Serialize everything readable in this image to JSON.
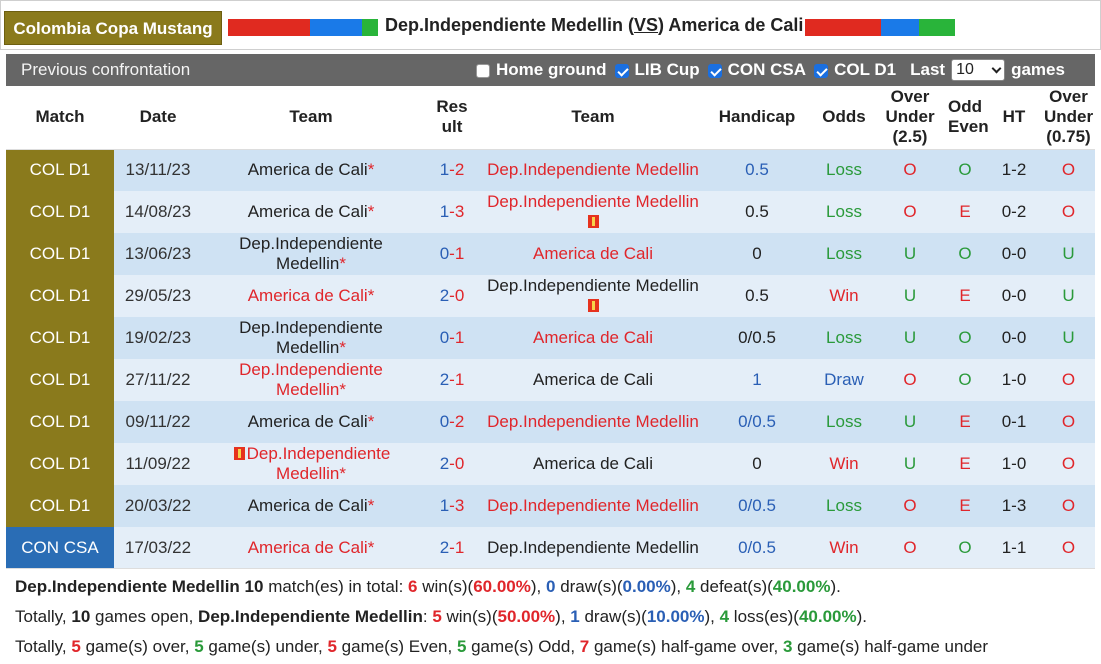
{
  "header": {
    "league": "Colombia Copa Mustang",
    "home_team": "Dep.Independiente Medellin",
    "vs": "VS",
    "away_team": "America de Cali",
    "flag_colors": [
      "#e02a20",
      "#1a7ae8",
      "#29b43a"
    ]
  },
  "section": {
    "title": "Previous confrontation",
    "filters": [
      {
        "label": "Home ground",
        "checked": false
      },
      {
        "label": "LIB Cup",
        "checked": true
      },
      {
        "label": "CON CSA",
        "checked": true
      },
      {
        "label": "COL D1",
        "checked": true
      }
    ],
    "last_label": "Last",
    "last_value": "10",
    "games_label": "games"
  },
  "columns": {
    "match": "Match",
    "date": "Date",
    "team_home": "Team",
    "result": "Result",
    "team_away": "Team",
    "handicap": "Handicap",
    "odds": "Odds",
    "over_under": "Over Under (2.5)",
    "odd_even": "Odd Even",
    "ht": "HT",
    "over_under_075": "Over Under (0.75)"
  },
  "rows": [
    {
      "match": "COL D1",
      "date": "13/11/23",
      "home": "America de Cali",
      "home_star": "*",
      "home_hl": false,
      "home_mark": false,
      "hs": "1",
      "as": "2",
      "away": "Dep.Independiente Medellin",
      "away_hl": true,
      "away_mark": false,
      "handicap": "0.5",
      "hc_color": "blue",
      "odds": "Loss",
      "ou": "O",
      "oe": "O",
      "ht": "1-2",
      "ou075": "O"
    },
    {
      "match": "COL D1",
      "date": "14/08/23",
      "home": "America de Cali",
      "home_star": "*",
      "home_hl": false,
      "home_mark": false,
      "hs": "1",
      "as": "3",
      "away": "Dep.Independiente Medellin",
      "away_hl": true,
      "away_mark": true,
      "handicap": "0.5",
      "hc_color": "dark",
      "odds": "Loss",
      "ou": "O",
      "oe": "E",
      "ht": "0-2",
      "ou075": "O"
    },
    {
      "match": "COL D1",
      "date": "13/06/23",
      "home": "Dep.Independiente Medellin",
      "home_star": "*",
      "home_hl": false,
      "home_mark": false,
      "hs": "0",
      "as": "1",
      "away": "America de Cali",
      "away_hl": true,
      "away_mark": false,
      "handicap": "0",
      "hc_color": "dark",
      "odds": "Loss",
      "ou": "U",
      "oe": "O",
      "ht": "0-0",
      "ou075": "U"
    },
    {
      "match": "COL D1",
      "date": "29/05/23",
      "home": "America de Cali",
      "home_star": "*",
      "home_hl": true,
      "home_mark": false,
      "hs": "2",
      "as": "0",
      "away": "Dep.Independiente Medellin",
      "away_hl": false,
      "away_mark": true,
      "handicap": "0.5",
      "hc_color": "dark",
      "odds": "Win",
      "ou": "U",
      "oe": "E",
      "ht": "0-0",
      "ou075": "U"
    },
    {
      "match": "COL D1",
      "date": "19/02/23",
      "home": "Dep.Independiente Medellin",
      "home_star": "*",
      "home_hl": false,
      "home_mark": false,
      "hs": "0",
      "as": "1",
      "away": "America de Cali",
      "away_hl": true,
      "away_mark": false,
      "handicap": "0/0.5",
      "hc_color": "dark",
      "odds": "Loss",
      "ou": "U",
      "oe": "O",
      "ht": "0-0",
      "ou075": "U"
    },
    {
      "match": "COL D1",
      "date": "27/11/22",
      "home": "Dep.Independiente Medellin",
      "home_star": "*",
      "home_hl": true,
      "home_mark": false,
      "hs": "2",
      "as": "1",
      "away": "America de Cali",
      "away_hl": false,
      "away_mark": false,
      "handicap": "1",
      "hc_color": "blue",
      "odds": "Draw",
      "ou": "O",
      "oe": "O",
      "ht": "1-0",
      "ou075": "O"
    },
    {
      "match": "COL D1",
      "date": "09/11/22",
      "home": "America de Cali",
      "home_star": "*",
      "home_hl": false,
      "home_mark": false,
      "hs": "0",
      "as": "2",
      "away": "Dep.Independiente Medellin",
      "away_hl": true,
      "away_mark": false,
      "handicap": "0/0.5",
      "hc_color": "blue",
      "odds": "Loss",
      "ou": "U",
      "oe": "E",
      "ht": "0-1",
      "ou075": "O"
    },
    {
      "match": "COL D1",
      "date": "11/09/22",
      "home": "Dep.Independiente Medellin",
      "home_star": "*",
      "home_hl": true,
      "home_mark": true,
      "hs": "2",
      "as": "0",
      "away": "America de Cali",
      "away_hl": false,
      "away_mark": false,
      "handicap": "0",
      "hc_color": "dark",
      "odds": "Win",
      "ou": "U",
      "oe": "E",
      "ht": "1-0",
      "ou075": "O"
    },
    {
      "match": "COL D1",
      "date": "20/03/22",
      "home": "America de Cali",
      "home_star": "*",
      "home_hl": false,
      "home_mark": false,
      "hs": "1",
      "as": "3",
      "away": "Dep.Independiente Medellin",
      "away_hl": true,
      "away_mark": false,
      "handicap": "0/0.5",
      "hc_color": "blue",
      "odds": "Loss",
      "ou": "O",
      "oe": "E",
      "ht": "1-3",
      "ou075": "O"
    },
    {
      "match": "CON CSA",
      "date": "17/03/22",
      "home": "America de Cali",
      "home_star": "*",
      "home_hl": true,
      "home_mark": false,
      "hs": "2",
      "as": "1",
      "away": "Dep.Independiente Medellin",
      "away_hl": false,
      "away_mark": false,
      "handicap": "0/0.5",
      "hc_color": "blue",
      "odds": "Win",
      "ou": "O",
      "oe": "O",
      "ht": "1-1",
      "ou075": "O"
    }
  ],
  "summary": {
    "team": "Dep.Independiente Medellin",
    "matches": "10",
    "wins": "6",
    "win_pct": "60.00%",
    "draws": "0",
    "draw_pct": "0.00%",
    "defeats": "4",
    "defeat_pct": "40.00%",
    "open_games": "10",
    "open_wins": "5",
    "open_win_pct": "50.00%",
    "open_draws": "1",
    "open_draw_pct": "10.00%",
    "open_losses": "4",
    "open_loss_pct": "40.00%",
    "over": "5",
    "under": "5",
    "even": "5",
    "odd": "5",
    "half_over": "7",
    "half_under": "3"
  }
}
